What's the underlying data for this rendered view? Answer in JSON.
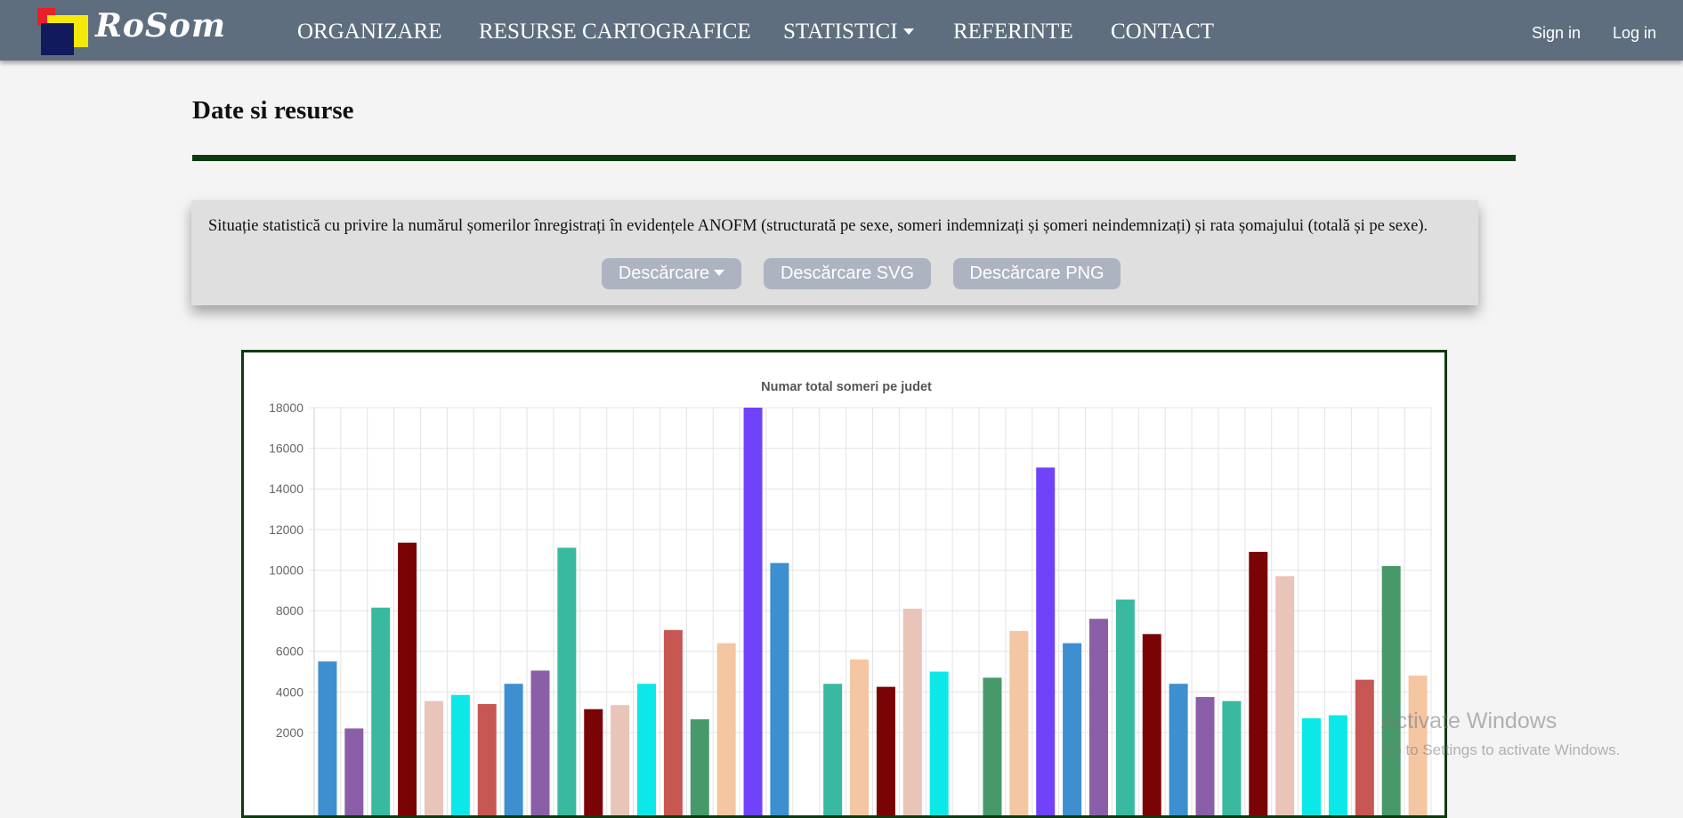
{
  "brand": {
    "name": "RoSom"
  },
  "nav": {
    "items": [
      {
        "label": "ORGANIZARE"
      },
      {
        "label": "RESURSE CARTOGRAFICE"
      },
      {
        "label": "STATISTICI"
      },
      {
        "label": "REFERINTE"
      },
      {
        "label": "CONTACT"
      }
    ],
    "sign_in": "Sign in",
    "log_in": "Log in"
  },
  "page": {
    "title": "Date si resurse",
    "info_text": "Situație statistică cu privire la numărul șomerilor înregistrați în evidențele ANOFM (structurată pe sexe, someri indemnizați și șomeri neindemnizați) și rata șomajului (totală și pe sexe).",
    "buttons": {
      "download": "Descărcare",
      "download_svg": "Descărcare SVG",
      "download_png": "Descărcare PNG"
    }
  },
  "colors": {
    "navbar": "#5e6e7f",
    "accent_rule": "#0c3b10",
    "button": "#aeb3c1"
  },
  "chart_data": {
    "type": "bar",
    "title": "Numar total someri pe judet",
    "xlabel": "",
    "ylabel": "",
    "ylim": [
      0,
      18000
    ],
    "visible_y_ticks": [
      "2000",
      "4000",
      "6000",
      "8000",
      "10000",
      "12000",
      "14000",
      "16000",
      "18000"
    ],
    "grid": true,
    "values": [
      5500,
      2200,
      8150,
      11350,
      3550,
      3850,
      3400,
      4400,
      5050,
      11100,
      3150,
      3350,
      4400,
      7050,
      2650,
      6400,
      18000,
      10350,
      0,
      4400,
      5600,
      4250,
      8100,
      5000,
      0,
      4700,
      7000,
      15050,
      6400,
      7600,
      8550,
      6850,
      4400,
      3750,
      3550,
      10900,
      9700,
      2700,
      2850,
      4600,
      10200,
      4800
    ],
    "colors": [
      "#3e8fcf",
      "#8b5fa8",
      "#39b99f",
      "#7a0306",
      "#e9c4b9",
      "#0ce8e8",
      "#c65753",
      "#3e8fcf",
      "#8b5fa8",
      "#39b99f",
      "#7a0306",
      "#e9c4b9",
      "#0ce8e8",
      "#c65753",
      "#48996a",
      "#f4c6a2",
      "#7042fa",
      "#3e8fcf",
      "#8b5fa8",
      "#39b99f",
      "#f4c6a2",
      "#7a0306",
      "#e9c4b9",
      "#0ce8e8",
      "#c65753",
      "#48996a",
      "#f4c6a2",
      "#7042fa",
      "#3e8fcf",
      "#8b5fa8",
      "#39b99f",
      "#7a0306",
      "#3e8fcf",
      "#8b5fa8",
      "#39b99f",
      "#7a0306",
      "#e9c4b9",
      "#0ce8e8",
      "#0ce8e8",
      "#c65753",
      "#48996a",
      "#f4c6a2"
    ]
  },
  "watermark": {
    "line1": "Activate Windows",
    "line2": "Go to Settings to activate Windows."
  }
}
